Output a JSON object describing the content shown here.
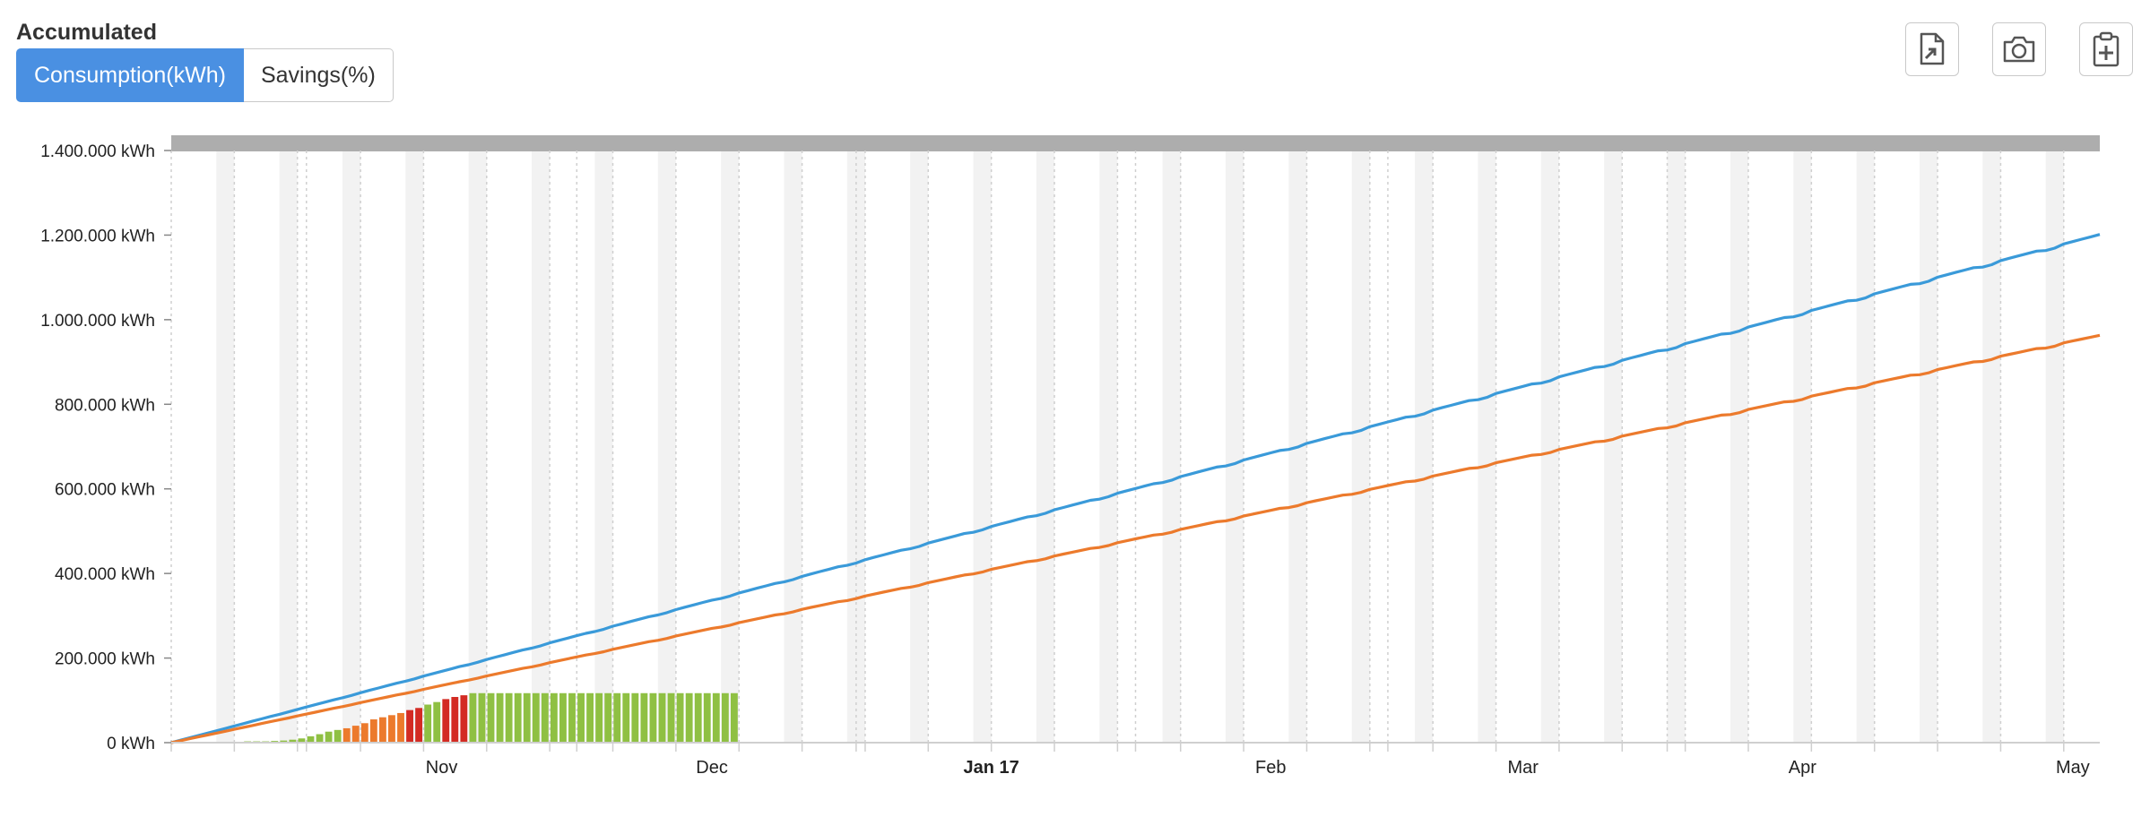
{
  "header": {
    "title": "Accumulated",
    "tabs": [
      {
        "label": "Consumption(kWh)",
        "active": true
      },
      {
        "label": "Savings(%)",
        "active": false
      }
    ],
    "tools": [
      {
        "name": "export-file-icon"
      },
      {
        "name": "camera-icon"
      },
      {
        "name": "clipboard-add-icon"
      }
    ]
  },
  "colors": {
    "series_blue": "#3a9ad9",
    "series_orange": "#ec7a2c",
    "bar_green": "#8fc043",
    "bar_orange": "#ec7a2c",
    "bar_red": "#d32b23",
    "accent": "#4a90e2"
  },
  "chart_data": {
    "type": "line",
    "x_axis": {
      "type": "date",
      "range": [
        "2016-10-17",
        "2017-05-19"
      ],
      "tick_labels": [
        {
          "date": "2016-11-01",
          "label": "Nov",
          "bold": false
        },
        {
          "date": "2016-12-01",
          "label": "Dec",
          "bold": false
        },
        {
          "date": "2017-01-01",
          "label": "Jan 17",
          "bold": true
        },
        {
          "date": "2017-02-01",
          "label": "Feb",
          "bold": false
        },
        {
          "date": "2017-03-01",
          "label": "Mar",
          "bold": false
        },
        {
          "date": "2017-04-01",
          "label": "Apr",
          "bold": false
        },
        {
          "date": "2017-05-01",
          "label": "May",
          "bold": false
        }
      ]
    },
    "y_axis": {
      "min": 0,
      "max": 1400000,
      "ticks": [
        0,
        200000,
        400000,
        600000,
        800000,
        1000000,
        1200000,
        1400000
      ],
      "tick_labels": [
        "0 kWh",
        "200.000 kWh",
        "400.000 kWh",
        "600.000 kWh",
        "800.000 kWh",
        "1.000.000 kWh",
        "1.200.000 kWh",
        "1.400.000 kWh"
      ]
    },
    "weekend_shading": true,
    "grid": "vertical dotted",
    "series": [
      {
        "color": "#3a9ad9",
        "type": "line",
        "x": [
          "2016-10-17",
          "2017-05-19"
        ],
        "values": [
          0,
          1200000
        ]
      },
      {
        "color": "#ec7a2c",
        "type": "line",
        "x": [
          "2016-10-17",
          "2017-05-19"
        ],
        "values": [
          0,
          962000
        ]
      }
    ],
    "bars": {
      "start": "2016-10-21",
      "values": [
        1000,
        1000,
        1000,
        2000,
        3000,
        3000,
        3000,
        4000,
        5000,
        7000,
        10000,
        15000,
        20000,
        26000,
        30000,
        34000,
        40000,
        46000,
        55000,
        60000,
        65000,
        70000,
        77000,
        82000,
        90000,
        96000,
        103000,
        108000,
        112000,
        117000,
        117000,
        117000,
        117000,
        117000,
        117000,
        117000,
        117000,
        117000,
        117000,
        117000,
        117000,
        117000,
        117000,
        117000,
        117000,
        117000,
        117000,
        117000,
        117000,
        117000,
        117000,
        117000,
        117000,
        117000,
        117000,
        117000,
        117000,
        117000,
        117000
      ],
      "colors": [
        "g",
        "g",
        "g",
        "g",
        "g",
        "g",
        "g",
        "g",
        "g",
        "g",
        "g",
        "g",
        "g",
        "g",
        "g",
        "o",
        "o",
        "o",
        "o",
        "o",
        "o",
        "o",
        "r",
        "r",
        "g",
        "g",
        "r",
        "r",
        "r",
        "g",
        "g",
        "g",
        "g",
        "g",
        "g",
        "g",
        "g",
        "g",
        "g",
        "g",
        "g",
        "g",
        "g",
        "g",
        "g",
        "g",
        "g",
        "g",
        "g",
        "g",
        "g",
        "g",
        "g",
        "g",
        "g",
        "g",
        "g",
        "g",
        "g"
      ]
    }
  }
}
